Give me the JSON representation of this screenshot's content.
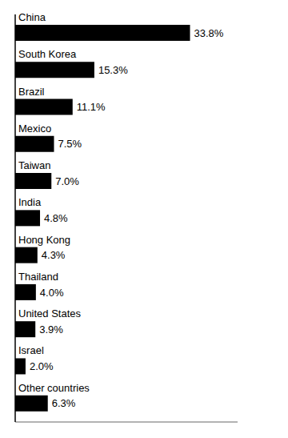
{
  "chart_data": {
    "type": "bar",
    "orientation": "horizontal",
    "categories": [
      "China",
      "South Korea",
      "Brazil",
      "Mexico",
      "Taiwan",
      "India",
      "Hong Kong",
      "Thailand",
      "United States",
      "Israel",
      "Other countries"
    ],
    "values": [
      33.8,
      15.3,
      11.1,
      7.5,
      7.0,
      4.8,
      4.3,
      4.0,
      3.9,
      2.0,
      6.3
    ],
    "value_labels": [
      "33.8%",
      "15.3%",
      "11.1%",
      "7.5%",
      "7.0%",
      "4.8%",
      "4.3%",
      "4.0%",
      "3.9%",
      "2.0%",
      "6.3%"
    ],
    "data_labels": true,
    "color": "#000000",
    "xlim": [
      0,
      43
    ],
    "tick_labels": false,
    "grid": false
  }
}
